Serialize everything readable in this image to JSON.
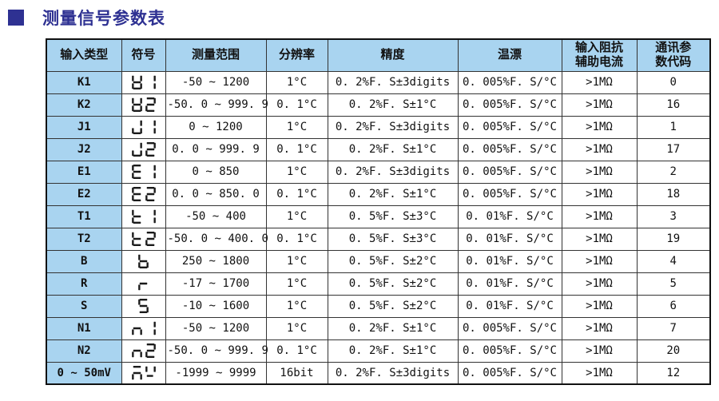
{
  "page": {
    "title": "测量信号参数表"
  },
  "colors": {
    "title_accent": "#2e3192",
    "header_bg": "#a9d4f0",
    "table_border": "#333333",
    "glyph": "#1a1a1a"
  },
  "table": {
    "headers": [
      "输入类型",
      "符号",
      "测量范围",
      "分辨率",
      "精度",
      "温漂",
      "输入阻抗\n辅助电流",
      "通讯参\n数代码"
    ],
    "rows": [
      {
        "type": "K1",
        "symbol": [
          "K",
          "1"
        ],
        "range": "-50 ~ 1200",
        "resolution": "1°C",
        "accuracy": "0. 2%F. S±3digits",
        "drift": "0. 005%F. S/°C",
        "impedance": ">1MΩ",
        "code": "0"
      },
      {
        "type": "K2",
        "symbol": [
          "K",
          "2"
        ],
        "range": "-50. 0 ~ 999. 9",
        "resolution": "0. 1°C",
        "accuracy": "0. 2%F. S±1°C",
        "drift": "0. 005%F. S/°C",
        "impedance": ">1MΩ",
        "code": "16"
      },
      {
        "type": "J1",
        "symbol": [
          "J",
          "1"
        ],
        "range": "0 ~ 1200",
        "resolution": "1°C",
        "accuracy": "0. 2%F. S±3digits",
        "drift": "0. 005%F. S/°C",
        "impedance": ">1MΩ",
        "code": "1"
      },
      {
        "type": "J2",
        "symbol": [
          "J",
          "2"
        ],
        "range": "0. 0 ~ 999. 9",
        "resolution": "0. 1°C",
        "accuracy": "0. 2%F. S±1°C",
        "drift": "0. 005%F. S/°C",
        "impedance": ">1MΩ",
        "code": "17"
      },
      {
        "type": "E1",
        "symbol": [
          "E",
          "1"
        ],
        "range": "0 ~ 850",
        "resolution": "1°C",
        "accuracy": "0. 2%F. S±3digits",
        "drift": "0. 005%F. S/°C",
        "impedance": ">1MΩ",
        "code": "2"
      },
      {
        "type": "E2",
        "symbol": [
          "E",
          "2"
        ],
        "range": "0. 0 ~ 850. 0",
        "resolution": "0. 1°C",
        "accuracy": "0. 2%F. S±1°C",
        "drift": "0. 005%F. S/°C",
        "impedance": ">1MΩ",
        "code": "18"
      },
      {
        "type": "T1",
        "symbol": [
          "t",
          "1"
        ],
        "range": "-50 ~ 400",
        "resolution": "1°C",
        "accuracy": "0. 5%F. S±3°C",
        "drift": "0. 01%F. S/°C",
        "impedance": ">1MΩ",
        "code": "3"
      },
      {
        "type": "T2",
        "symbol": [
          "t",
          "2"
        ],
        "range": "-50. 0 ~ 400. 0",
        "resolution": "0. 1°C",
        "accuracy": "0. 5%F. S±3°C",
        "drift": "0. 01%F. S/°C",
        "impedance": ">1MΩ",
        "code": "19"
      },
      {
        "type": "B",
        "symbol": [
          "b"
        ],
        "range": "250 ~ 1800",
        "resolution": "1°C",
        "accuracy": "0. 5%F. S±2°C",
        "drift": "0. 01%F. S/°C",
        "impedance": ">1MΩ",
        "code": "4"
      },
      {
        "type": "R",
        "symbol": [
          "r"
        ],
        "range": "-17 ~ 1700",
        "resolution": "1°C",
        "accuracy": "0. 5%F. S±2°C",
        "drift": "0. 01%F. S/°C",
        "impedance": ">1MΩ",
        "code": "5"
      },
      {
        "type": "S",
        "symbol": [
          "S"
        ],
        "range": "-10 ~ 1600",
        "resolution": "1°C",
        "accuracy": "0. 5%F. S±2°C",
        "drift": "0. 01%F. S/°C",
        "impedance": ">1MΩ",
        "code": "6"
      },
      {
        "type": "N1",
        "symbol": [
          "n",
          "1"
        ],
        "range": "-50 ~ 1200",
        "resolution": "1°C",
        "accuracy": "0. 2%F. S±1°C",
        "drift": "0. 005%F. S/°C",
        "impedance": ">1MΩ",
        "code": "7"
      },
      {
        "type": "N2",
        "symbol": [
          "n",
          "2"
        ],
        "range": "-50. 0 ~ 999. 9",
        "resolution": "0. 1°C",
        "accuracy": "0. 2%F. S±1°C",
        "drift": "0. 005%F. S/°C",
        "impedance": ">1MΩ",
        "code": "20"
      },
      {
        "type": "0 ~ 50mV",
        "symbol": [
          "m",
          "v"
        ],
        "range": "-1999 ~ 9999",
        "resolution": "16bit",
        "accuracy": "0. 2%F. S±3digits",
        "drift": "0. 005%F. S/°C",
        "impedance": ">1MΩ",
        "code": "12"
      }
    ]
  }
}
